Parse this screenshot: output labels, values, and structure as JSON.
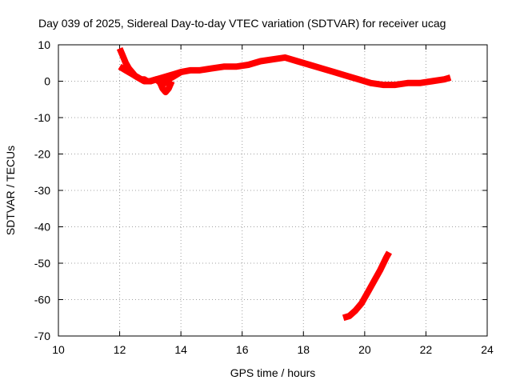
{
  "chart_data": {
    "type": "line",
    "title": "Day 039 of 2025, Sidereal Day-to-day VTEC variation (SDTVAR) for receiver ucag",
    "xlabel": "GPS time / hours",
    "ylabel": "SDTVAR / TECUs",
    "xlim": [
      10,
      24
    ],
    "ylim": [
      -70,
      10
    ],
    "xticks": [
      "10",
      "12",
      "14",
      "16",
      "18",
      "20",
      "22",
      "24"
    ],
    "yticks": [
      "10",
      "0",
      "-10",
      "-20",
      "-30",
      "-40",
      "-50",
      "-60",
      "-70"
    ],
    "grid": true,
    "legend": "none",
    "color": "#ff0000",
    "series": [
      {
        "name": "main",
        "x": [
          12.0,
          12.1,
          12.2,
          12.3,
          12.4,
          12.5,
          12.6,
          12.7,
          12.8,
          12.9,
          13.0,
          13.2,
          13.4,
          13.6,
          13.8,
          14.0,
          14.3,
          14.6,
          15.0,
          15.4,
          15.8,
          16.2,
          16.6,
          17.0,
          17.4,
          17.8,
          18.2,
          18.6,
          19.0,
          19.4,
          19.8,
          20.2,
          20.6,
          21.0,
          21.4,
          21.8,
          22.2,
          22.6,
          22.8
        ],
        "y": [
          9.0,
          7.0,
          5.0,
          3.5,
          2.5,
          1.5,
          1.0,
          0.5,
          0.5,
          0.0,
          0.0,
          0.5,
          1.0,
          1.5,
          2.0,
          2.5,
          3.0,
          3.0,
          3.5,
          4.0,
          4.0,
          4.5,
          5.5,
          6.0,
          6.5,
          5.5,
          4.5,
          3.5,
          2.5,
          1.5,
          0.5,
          -0.5,
          -1.0,
          -1.0,
          -0.5,
          -0.5,
          0.0,
          0.5,
          1.0
        ]
      },
      {
        "name": "branch",
        "x": [
          12.0,
          12.2,
          12.4,
          12.6,
          12.8,
          13.0,
          13.2,
          13.4,
          13.6,
          13.8,
          14.0
        ],
        "y": [
          4.0,
          3.0,
          2.0,
          1.0,
          0.0,
          0.0,
          0.5,
          -1.0,
          0.5,
          1.5,
          2.5
        ]
      },
      {
        "name": "dip",
        "x": [
          13.3,
          13.4,
          13.5,
          13.6,
          13.7
        ],
        "y": [
          0.0,
          -2.0,
          -3.0,
          -2.0,
          0.0
        ]
      },
      {
        "name": "lower",
        "x": [
          19.3,
          19.5,
          19.7,
          19.9,
          20.1,
          20.3,
          20.5,
          20.7,
          20.8
        ],
        "y": [
          -65.0,
          -64.5,
          -63.0,
          -61.0,
          -58.0,
          -55.0,
          -52.0,
          -48.5,
          -47.0
        ]
      }
    ]
  }
}
